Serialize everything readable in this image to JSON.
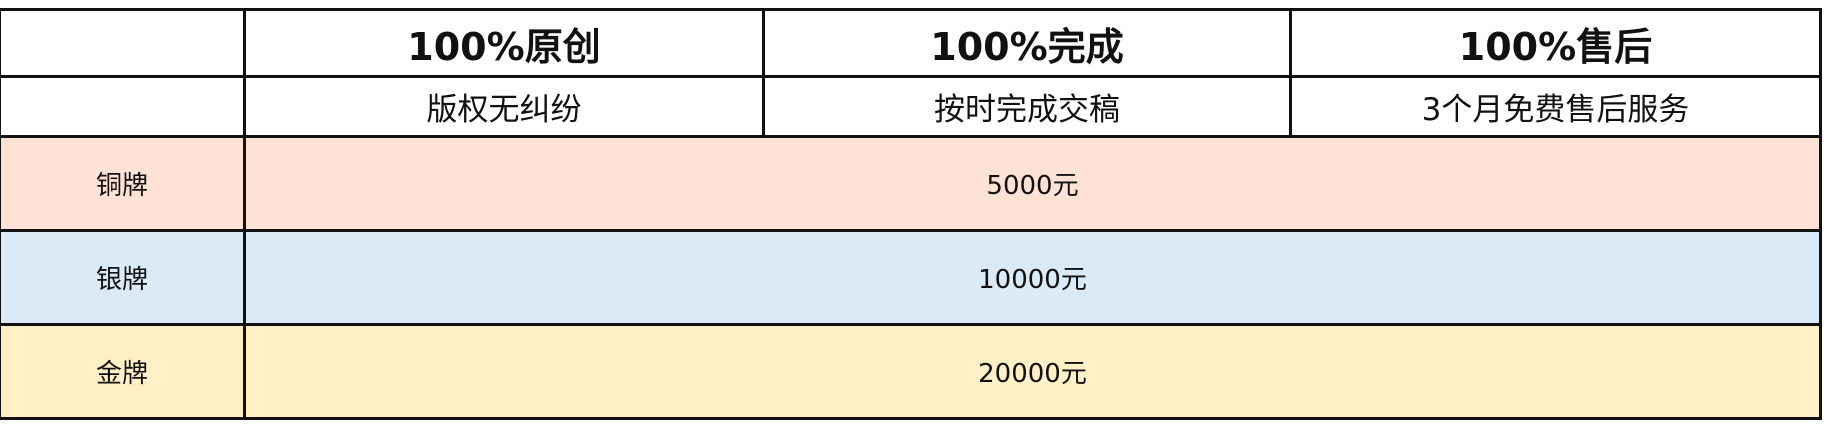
{
  "header": {
    "columns": [
      {
        "title": "100%原创",
        "subtitle": "版权无纠纷"
      },
      {
        "title": "100%完成",
        "subtitle": "按时完成交稿"
      },
      {
        "title": "100%售后",
        "subtitle": "3个月免费售后服务"
      }
    ]
  },
  "tiers": [
    {
      "name": "铜牌",
      "price": "5000元",
      "color": "#FFE2D6"
    },
    {
      "name": "银牌",
      "price": "10000元",
      "color": "#DAEAF6"
    },
    {
      "name": "金牌",
      "price": "20000元",
      "color": "#FFF0C6"
    }
  ]
}
